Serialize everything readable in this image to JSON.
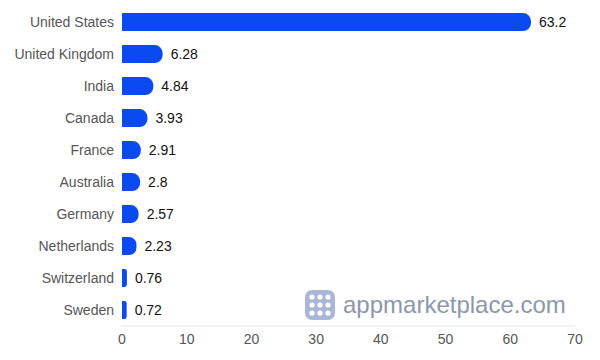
{
  "chart_data": {
    "type": "bar",
    "orientation": "horizontal",
    "categories": [
      "United States",
      "United Kingdom",
      "India",
      "Canada",
      "France",
      "Australia",
      "Germany",
      "Netherlands",
      "Switzerland",
      "Sweden"
    ],
    "values": [
      63.2,
      6.28,
      4.84,
      3.93,
      2.91,
      2.8,
      2.57,
      2.23,
      0.76,
      0.72
    ],
    "color": "#0b4af0",
    "xlim": [
      0,
      70
    ],
    "xticks": [
      0,
      10,
      20,
      30,
      40,
      50,
      60,
      70
    ],
    "grid": false,
    "data_labels": true,
    "annotations": [
      "appmarketplace.com"
    ]
  }
}
